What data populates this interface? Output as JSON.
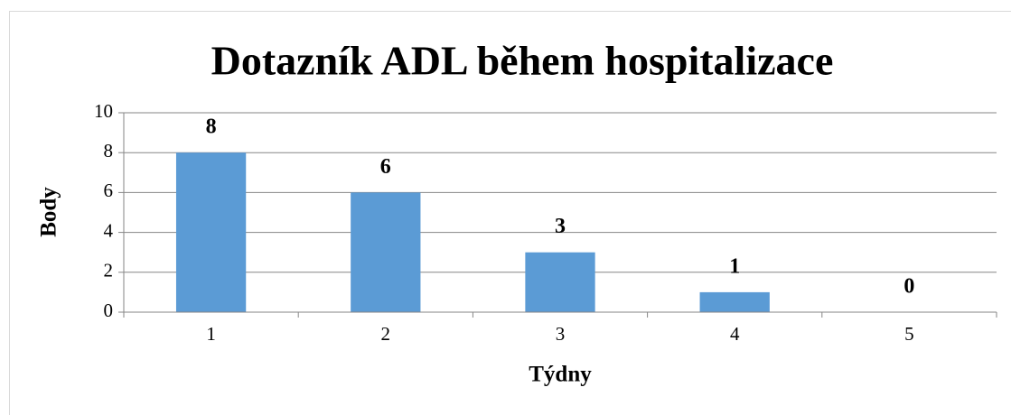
{
  "chart_data": {
    "type": "bar",
    "title": "Dotazník ADL během hospitalizace",
    "x_label": "Týdny",
    "y_label": "Body",
    "categories": [
      "1",
      "2",
      "3",
      "4",
      "5"
    ],
    "values": [
      8,
      6,
      3,
      1,
      0
    ],
    "color": "#5b9bd5",
    "ylim": [
      0,
      10
    ],
    "yticks": [
      0,
      2,
      4,
      6,
      8,
      10
    ],
    "grid": true,
    "data_labels": true
  }
}
